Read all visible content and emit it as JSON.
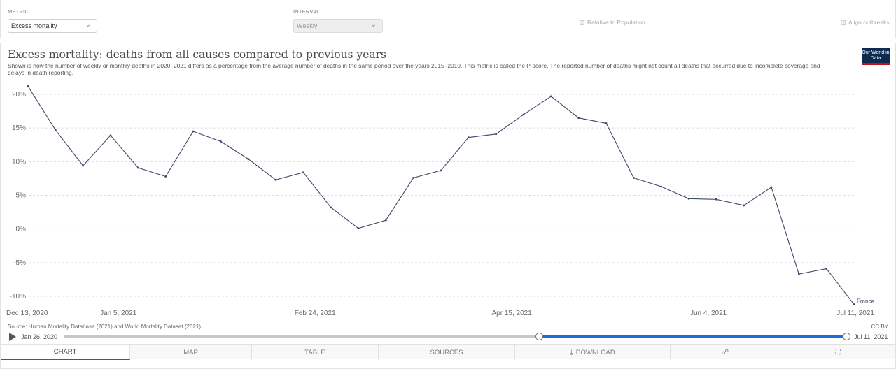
{
  "controls": {
    "metric_label": "METRIC",
    "metric_value": "Excess mortality",
    "interval_label": "INTERVAL",
    "interval_value": "Weekly",
    "relative_label": "Relative to Population",
    "align_label": "Align outbreaks"
  },
  "header": {
    "title": "Excess mortality: deaths from all causes compared to previous years",
    "subtitle": "Shown is how the number of weekly or monthly deaths in 2020–2021 differs as a percentage from the average number of deaths in the same period over the years 2015–2019. This metric is called the P-score. The reported number of deaths might not count all deaths that occurred due to incomplete coverage and delays in death reporting.",
    "logo": "Our World in Data"
  },
  "footer": {
    "source": "Source: Human Mortality Database (2021) and World Mortality Dataset (2021)",
    "license": "CC BY"
  },
  "timeline": {
    "start_label": "Jan 26, 2020",
    "end_label": "Jul 11, 2021",
    "range_start_fraction": 0.608,
    "range_end_fraction": 1.0
  },
  "tabs": [
    {
      "label": "CHART",
      "active": true
    },
    {
      "label": "MAP"
    },
    {
      "label": "TABLE"
    },
    {
      "label": "SOURCES"
    },
    {
      "label": "DOWNLOAD",
      "icon": "download-icon"
    },
    {
      "label": "",
      "icon": "share-icon"
    },
    {
      "label": "",
      "icon": "fullscreen-icon"
    }
  ],
  "colors": {
    "line": "#3d4a68",
    "grid": "#dddddd",
    "accent": "#1a6ed8"
  },
  "chart_data": {
    "type": "line",
    "ylim": [
      -10,
      20
    ],
    "y_ticks": [
      -10,
      -5,
      0,
      5,
      10,
      15,
      20
    ],
    "y_tick_labels": [
      "-10%",
      "-5%",
      "0%",
      "5%",
      "10%",
      "15%",
      "20%"
    ],
    "x_ticks": [
      {
        "label": "Dec 13, 2020",
        "x": "2020-12-13"
      },
      {
        "label": "Jan 5, 2021",
        "x": "2021-01-05"
      },
      {
        "label": "Feb 24, 2021",
        "x": "2021-02-24"
      },
      {
        "label": "Apr 15, 2021",
        "x": "2021-04-15"
      },
      {
        "label": "Jun 4, 2021",
        "x": "2021-06-04"
      },
      {
        "label": "Jul 11, 2021",
        "x": "2021-07-11"
      }
    ],
    "grid": true,
    "series": [
      {
        "name": "France",
        "x": [
          "2020-12-13",
          "2020-12-20",
          "2020-12-27",
          "2021-01-03",
          "2021-01-10",
          "2021-01-17",
          "2021-01-24",
          "2021-01-31",
          "2021-02-07",
          "2021-02-14",
          "2021-02-21",
          "2021-02-28",
          "2021-03-07",
          "2021-03-14",
          "2021-03-21",
          "2021-03-28",
          "2021-04-04",
          "2021-04-11",
          "2021-04-18",
          "2021-04-25",
          "2021-05-02",
          "2021-05-09",
          "2021-05-16",
          "2021-05-23",
          "2021-05-30",
          "2021-06-06",
          "2021-06-13",
          "2021-06-20",
          "2021-06-27",
          "2021-07-04",
          "2021-07-11"
        ],
        "y": [
          21.2,
          14.7,
          9.4,
          13.9,
          9.1,
          7.8,
          14.5,
          13.0,
          10.4,
          7.3,
          8.4,
          3.2,
          0.1,
          1.3,
          7.6,
          8.7,
          13.6,
          14.1,
          17.0,
          19.7,
          16.5,
          15.7,
          7.6,
          6.3,
          4.5,
          4.4,
          3.5,
          6.2,
          -6.7,
          -5.9,
          -11.2
        ]
      }
    ]
  }
}
